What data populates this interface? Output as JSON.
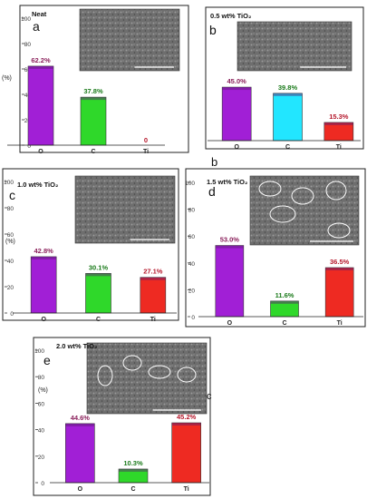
{
  "colors": {
    "O": "#a11fd6",
    "C": "#2fd82a",
    "Ti": "#ee2a22",
    "C_b": "#22e6ff"
  },
  "chart_data": [
    {
      "type": "bar",
      "panel_letter": "a",
      "sample_label": "Neat",
      "categories": [
        "O",
        "C",
        "Ti"
      ],
      "values": [
        62.2,
        37.8,
        0
      ],
      "value_labels": [
        "62.2%",
        "37.8%",
        "0"
      ],
      "ylabel": "(%)",
      "ylim": [
        0,
        100
      ],
      "yticks": [
        "0",
        "20",
        "40",
        "60",
        "80",
        "100"
      ]
    },
    {
      "type": "bar",
      "panel_letter": "b",
      "sample_label": "0.5 wt% TiO₂",
      "categories": [
        "O",
        "C",
        "Ti"
      ],
      "values": [
        45.0,
        39.8,
        15.3
      ],
      "value_labels": [
        "45.0%",
        "39.8%",
        "15.3%"
      ],
      "ylabel": "",
      "ylim": [
        0,
        100
      ],
      "yticks": []
    },
    {
      "type": "bar",
      "panel_letter": "c",
      "sample_label": "1.0 wt% TiO₂",
      "categories": [
        "O",
        "C",
        "Ti"
      ],
      "values": [
        42.8,
        30.1,
        27.1
      ],
      "value_labels": [
        "42.8%",
        "30.1%",
        "27.1%"
      ],
      "ylabel": "(%)",
      "ylim": [
        0,
        100
      ],
      "yticks": [
        "0",
        "20",
        "40",
        "60",
        "80",
        "100"
      ]
    },
    {
      "type": "bar",
      "panel_letter": "d",
      "sample_label": "1.5 wt% TiO₂",
      "categories": [
        "O",
        "C",
        "Ti"
      ],
      "values": [
        53.0,
        11.6,
        36.5
      ],
      "value_labels": [
        "53.0%",
        "11.6%",
        "36.5%"
      ],
      "ylabel": "",
      "ylim": [
        0,
        100
      ],
      "yticks": [
        "0",
        "20",
        "40",
        "60",
        "80",
        "100"
      ]
    },
    {
      "type": "bar",
      "panel_letter": "e",
      "sample_label": "2.0 wt% TiO₂",
      "categories": [
        "O",
        "C",
        "Ti"
      ],
      "values": [
        44.6,
        10.3,
        45.2
      ],
      "value_labels": [
        "44.6%",
        "10.3%",
        "45.2%"
      ],
      "ylabel": "(%)",
      "ylim": [
        0,
        100
      ],
      "yticks": [
        "0",
        "20",
        "40",
        "60",
        "80",
        "100"
      ]
    }
  ],
  "stray_letters": [
    "b",
    "c"
  ]
}
